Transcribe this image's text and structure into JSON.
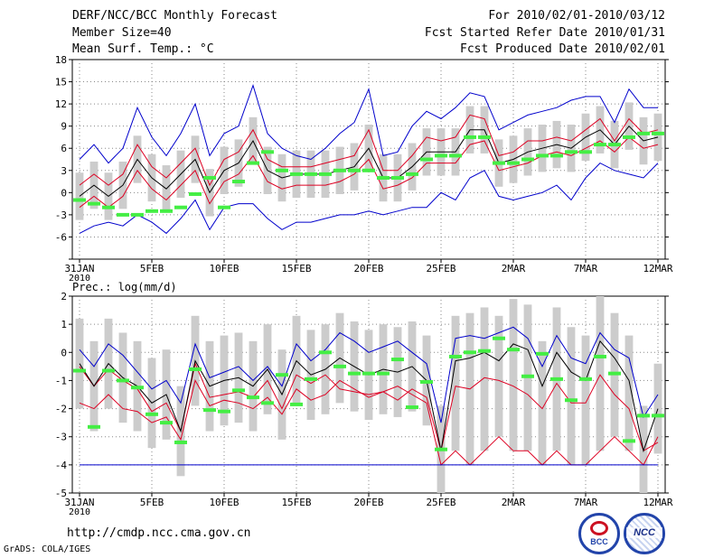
{
  "header": {
    "title": "DERF/NCC/BCC Monthly Forecast",
    "member_size": "Member Size=40",
    "variable1": "Mean Surf. Temp.: °C",
    "period": "For 2010/02/01-2010/03/12",
    "started": "Fcst Started Refer Date 2010/01/31",
    "produced": "Fcst Produced Date 2010/02/01"
  },
  "footer": {
    "url": "http://cmdp.ncc.cma.gov.cn",
    "credit": "GrADS: COLA/IGES",
    "logo1_text": "BCC",
    "logo2_text": "NCC"
  },
  "colors": {
    "blue": "#0000cc",
    "red": "#dd0022",
    "black": "#000000",
    "green": "#44ee44",
    "box": "#cccccc",
    "grid": "#888888"
  },
  "chart_data": [
    {
      "type": "line",
      "title": "Mean Surf. Temp.: °C",
      "x_tick_labels": [
        "31JAN\n2010",
        "5FEB",
        "10FEB",
        "15FEB",
        "20FEB",
        "25FEB",
        "2MAR",
        "7MAR",
        "12MAR"
      ],
      "x_tick_days": [
        0,
        5,
        10,
        15,
        20,
        25,
        30,
        35,
        40
      ],
      "ylim": [
        -9,
        18
      ],
      "y_ticks": [
        -9,
        -6,
        -3,
        0,
        3,
        6,
        9,
        12,
        15,
        18
      ],
      "y_tick_labels": [
        "",
        "-6",
        "-3",
        "0",
        "3",
        "6",
        "9",
        "12",
        "15",
        "18"
      ],
      "series": [
        {
          "name": "max",
          "color": "blue",
          "values": [
            4.5,
            6.5,
            4.0,
            6.0,
            11.5,
            7.5,
            5.0,
            8.0,
            12.0,
            5.0,
            8.0,
            9.0,
            14.5,
            8.0,
            6.0,
            5.0,
            4.5,
            6.0,
            8.0,
            9.5,
            14.0,
            5.0,
            5.5,
            9.0,
            11.0,
            10.0,
            11.5,
            13.5,
            13.0,
            8.5,
            9.5,
            10.5,
            11.0,
            11.5,
            12.5,
            13.0,
            13.0,
            9.5,
            14.0,
            11.5,
            11.5
          ]
        },
        {
          "name": "upper",
          "color": "red",
          "values": [
            1.0,
            2.5,
            1.0,
            2.5,
            6.5,
            3.5,
            2.0,
            4.0,
            6.0,
            1.0,
            4.5,
            5.5,
            8.5,
            4.5,
            3.5,
            3.5,
            3.5,
            4.0,
            4.5,
            5.0,
            8.5,
            3.0,
            3.0,
            5.0,
            7.5,
            7.0,
            7.5,
            10.5,
            10.0,
            5.0,
            5.5,
            7.0,
            7.0,
            7.5,
            7.0,
            8.5,
            10.0,
            7.0,
            10.0,
            8.0,
            8.5
          ]
        },
        {
          "name": "mean",
          "color": "black",
          "values": [
            -0.5,
            1.0,
            -0.5,
            1.0,
            4.5,
            2.0,
            0.5,
            2.5,
            4.5,
            0.0,
            3.0,
            4.0,
            7.0,
            3.0,
            2.0,
            2.5,
            2.5,
            2.5,
            3.0,
            3.5,
            6.0,
            2.0,
            2.0,
            3.5,
            5.5,
            5.5,
            5.5,
            8.5,
            8.5,
            4.0,
            4.5,
            5.5,
            6.0,
            6.5,
            6.0,
            7.5,
            8.5,
            6.5,
            9.0,
            7.0,
            7.5
          ]
        },
        {
          "name": "lower",
          "color": "red",
          "values": [
            -2.0,
            -0.5,
            -2.0,
            -0.5,
            3.0,
            0.5,
            -1.0,
            1.0,
            3.0,
            -1.5,
            1.5,
            2.5,
            5.0,
            1.5,
            0.5,
            1.0,
            1.0,
            1.0,
            1.5,
            2.5,
            4.5,
            0.5,
            1.0,
            2.0,
            4.0,
            4.0,
            4.0,
            6.5,
            7.0,
            3.0,
            3.5,
            4.0,
            5.0,
            5.5,
            5.0,
            6.0,
            7.0,
            5.5,
            7.5,
            6.0,
            6.5
          ]
        },
        {
          "name": "min",
          "color": "blue",
          "values": [
            -5.5,
            -4.5,
            -4.0,
            -4.5,
            -3.0,
            -4.0,
            -5.5,
            -3.5,
            -1.0,
            -5.0,
            -2.0,
            -1.5,
            -1.5,
            -3.5,
            -5.0,
            -4.0,
            -4.0,
            -3.5,
            -3.0,
            -3.0,
            -2.5,
            -3.0,
            -2.5,
            -2.0,
            -2.0,
            0.0,
            -1.0,
            2.0,
            3.0,
            -0.5,
            -1.0,
            -0.5,
            0.0,
            1.0,
            -1.0,
            2.0,
            4.0,
            3.0,
            2.5,
            2.0,
            4.0
          ]
        },
        {
          "name": "observed",
          "color": "green",
          "values": [
            -1.0,
            -1.5,
            -2.0,
            -3.0,
            -3.0,
            -2.5,
            -2.5,
            -2.0,
            -0.2,
            2.0,
            -2.0,
            1.5,
            4.0,
            5.5,
            3.0,
            2.5,
            2.5,
            2.5,
            3.0,
            3.0,
            3.0,
            2.0,
            2.0,
            2.5,
            4.5,
            5.0,
            5.0,
            7.5,
            7.5,
            4.0,
            4.0,
            4.5,
            5.0,
            5.0,
            5.5,
            5.5,
            6.5,
            6.5,
            7.5,
            8.0,
            8.0
          ]
        }
      ]
    },
    {
      "type": "line",
      "title": "Prec.: log(mm/d)",
      "x_tick_labels": [
        "31JAN\n2010",
        "5FEB",
        "10FEB",
        "15FEB",
        "20FEB",
        "25FEB",
        "2MAR",
        "7MAR",
        "12MAR"
      ],
      "x_tick_days": [
        0,
        5,
        10,
        15,
        20,
        25,
        30,
        35,
        40
      ],
      "ylim": [
        -5,
        2
      ],
      "y_ticks": [
        -5,
        -4,
        -3,
        -2,
        -1,
        0,
        1,
        2
      ],
      "y_tick_labels": [
        "-5",
        "-4",
        "-3",
        "-2",
        "-1",
        "0",
        "1",
        "2"
      ],
      "series": [
        {
          "name": "max",
          "color": "blue",
          "values": [
            0.1,
            -0.5,
            0.3,
            -0.1,
            -0.7,
            -1.3,
            -1.0,
            -1.8,
            0.3,
            -0.9,
            -0.7,
            -0.5,
            -1.0,
            -0.5,
            -1.2,
            0.3,
            -0.3,
            0.1,
            0.7,
            0.4,
            0.0,
            0.2,
            0.4,
            0.0,
            -0.4,
            -2.5,
            0.5,
            0.6,
            0.5,
            0.7,
            0.9,
            0.5,
            -0.5,
            0.6,
            -0.2,
            -0.4,
            0.7,
            0.1,
            -0.2,
            -2.3,
            -1.5
          ]
        },
        {
          "name": "upper",
          "color": "red",
          "values": [
            -0.5,
            -1.2,
            -0.6,
            -1.0,
            -1.3,
            -2.1,
            -1.8,
            -2.8,
            -0.4,
            -1.6,
            -1.5,
            -1.4,
            -1.6,
            -1.0,
            -2.0,
            -0.8,
            -1.1,
            -0.8,
            -1.3,
            -1.4,
            -1.5,
            -1.4,
            -1.7,
            -1.3,
            -1.6,
            -3.5,
            -1.2,
            -1.3,
            -0.9,
            -1.0,
            -1.2,
            -1.5,
            -2.0,
            -1.1,
            -1.8,
            -1.8,
            -0.8,
            -1.5,
            -2.0,
            -3.5,
            -3.2
          ]
        },
        {
          "name": "mean",
          "color": "black",
          "values": [
            -0.4,
            -1.2,
            -0.4,
            -0.9,
            -1.2,
            -1.8,
            -1.5,
            -2.8,
            -0.3,
            -1.2,
            -1.0,
            -0.9,
            -1.2,
            -0.6,
            -1.5,
            -0.3,
            -0.8,
            -0.6,
            -0.2,
            -0.5,
            -0.8,
            -0.6,
            -0.7,
            -0.5,
            -1.0,
            -3.5,
            -0.3,
            -0.2,
            0.0,
            -0.3,
            0.3,
            0.1,
            -1.2,
            0.0,
            -0.7,
            -1.0,
            0.4,
            -0.2,
            -1.0,
            -3.5,
            -2.0
          ]
        },
        {
          "name": "lower",
          "color": "red",
          "values": [
            -1.8,
            -2.0,
            -1.5,
            -2.0,
            -2.1,
            -2.5,
            -2.3,
            -3.1,
            -1.0,
            -1.9,
            -1.7,
            -1.8,
            -2.0,
            -1.6,
            -2.2,
            -1.3,
            -1.7,
            -1.5,
            -1.0,
            -1.3,
            -1.6,
            -1.4,
            -1.2,
            -1.5,
            -1.8,
            -4.0,
            -3.5,
            -4.0,
            -3.5,
            -3.0,
            -3.5,
            -3.5,
            -4.0,
            -3.5,
            -4.0,
            -4.0,
            -3.5,
            -3.0,
            -3.5,
            -4.0,
            -3.0
          ]
        },
        {
          "name": "min",
          "color": "blue",
          "values": [
            -4,
            -4,
            -4,
            -4,
            -4,
            -4,
            -4,
            -4,
            -4,
            -4,
            -4,
            -4,
            -4,
            -4,
            -4,
            -4,
            -4,
            -4,
            -4,
            -4,
            -4,
            -4,
            -4,
            -4,
            -4,
            -4,
            -4,
            -4,
            -4,
            -4,
            -4,
            -4,
            -4,
            -4,
            -4,
            -4,
            -4,
            -4,
            -4,
            -4,
            -4
          ]
        },
        {
          "name": "observed",
          "color": "green",
          "values": [
            -0.65,
            -2.65,
            -0.65,
            -1.0,
            -1.25,
            -2.2,
            -2.5,
            -3.2,
            -0.6,
            -2.05,
            -2.1,
            -1.35,
            -1.6,
            -1.8,
            -0.8,
            -1.85,
            -0.95,
            0.0,
            -0.5,
            -0.75,
            -0.75,
            -0.75,
            -0.25,
            -1.95,
            -1.05,
            -3.45,
            -0.15,
            0.0,
            0.05,
            0.5,
            0.1,
            -0.85,
            -0.05,
            -0.95,
            -1.7,
            -0.95,
            -0.15,
            -0.75,
            -3.15,
            -2.25,
            -2.25
          ]
        }
      ]
    }
  ]
}
